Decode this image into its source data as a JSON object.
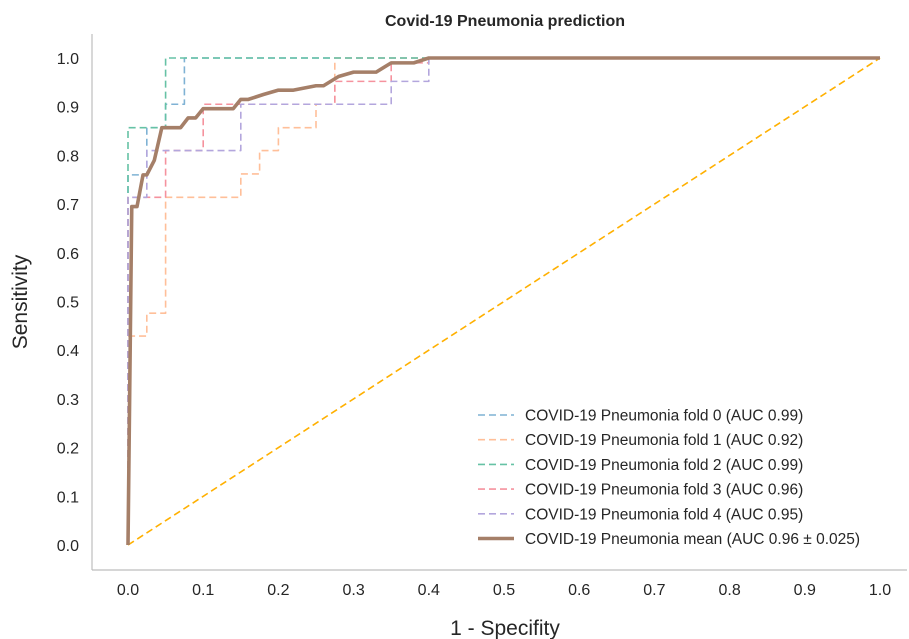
{
  "chart_data": {
    "type": "line",
    "title": "Covid-19 Pneumonia prediction",
    "xlabel": "1 - Specifity",
    "ylabel": "Sensitivity",
    "xlim": [
      0.0,
      1.0
    ],
    "ylim": [
      0.0,
      1.0
    ],
    "xticks": [
      "0.0",
      "0.1",
      "0.2",
      "0.3",
      "0.4",
      "0.5",
      "0.6",
      "0.7",
      "0.8",
      "0.9",
      "1.0"
    ],
    "yticks": [
      "0.0",
      "0.1",
      "0.2",
      "0.3",
      "0.4",
      "0.5",
      "0.6",
      "0.7",
      "0.8",
      "0.9",
      "1.0"
    ],
    "grid": false,
    "legend_position": "bottom-right",
    "series": [
      {
        "name": "COVID-19 Pneumonia fold 0 (AUC 0.99)",
        "color": "#7fb2d4",
        "style": "dashed",
        "x": [
          0.0,
          0.0,
          0.0,
          0.025,
          0.025,
          0.05,
          0.05,
          0.075,
          0.075,
          1.0
        ],
        "y": [
          0.0,
          0.76,
          0.76,
          0.76,
          0.857,
          0.857,
          0.905,
          0.905,
          1.0,
          1.0
        ]
      },
      {
        "name": "COVID-19 Pneumonia fold 1 (AUC 0.92)",
        "color": "#ffbf99",
        "style": "dashed",
        "x": [
          0.0,
          0.0,
          0.025,
          0.025,
          0.05,
          0.05,
          0.15,
          0.15,
          0.175,
          0.175,
          0.2,
          0.2,
          0.25,
          0.25,
          0.275,
          0.275,
          1.0
        ],
        "y": [
          0.0,
          0.429,
          0.429,
          0.476,
          0.476,
          0.714,
          0.714,
          0.762,
          0.762,
          0.81,
          0.81,
          0.857,
          0.857,
          0.905,
          0.905,
          1.0,
          1.0
        ]
      },
      {
        "name": "COVID-19 Pneumonia fold 2 (AUC 0.99)",
        "color": "#66c2a5",
        "style": "dashed",
        "x": [
          0.0,
          0.0,
          0.05,
          0.05,
          1.0
        ],
        "y": [
          0.0,
          0.857,
          0.857,
          1.0,
          1.0
        ]
      },
      {
        "name": "COVID-19 Pneumonia fold 3 (AUC 0.96)",
        "color": "#f5929e",
        "style": "dashed",
        "x": [
          0.0,
          0.0,
          0.05,
          0.05,
          0.1,
          0.1,
          0.275,
          0.275,
          0.35,
          0.35,
          0.4,
          0.4,
          1.0
        ],
        "y": [
          0.0,
          0.714,
          0.714,
          0.81,
          0.81,
          0.905,
          0.905,
          0.952,
          0.952,
          0.99,
          0.99,
          1.0,
          1.0
        ]
      },
      {
        "name": "COVID-19 Pneumonia fold 4 (AUC 0.95)",
        "color": "#b3a6dd",
        "style": "dashed",
        "x": [
          0.0,
          0.0,
          0.025,
          0.025,
          0.15,
          0.15,
          0.35,
          0.35,
          0.4,
          0.4,
          1.0
        ],
        "y": [
          0.0,
          0.714,
          0.714,
          0.81,
          0.81,
          0.905,
          0.905,
          0.952,
          0.952,
          1.0,
          1.0
        ]
      },
      {
        "name": "COVID-19 Pneumonia mean (AUC 0.96 ± 0.025)",
        "color": "#a57f68",
        "style": "solid",
        "x": [
          0.0,
          0.005,
          0.012,
          0.02,
          0.025,
          0.035,
          0.045,
          0.05,
          0.06,
          0.07,
          0.08,
          0.09,
          0.1,
          0.11,
          0.12,
          0.14,
          0.15,
          0.16,
          0.18,
          0.2,
          0.22,
          0.25,
          0.26,
          0.28,
          0.3,
          0.33,
          0.35,
          0.38,
          0.4,
          0.45,
          0.5,
          0.6,
          0.7,
          0.8,
          0.9,
          1.0
        ],
        "y": [
          0.0,
          0.695,
          0.695,
          0.76,
          0.76,
          0.79,
          0.857,
          0.857,
          0.857,
          0.857,
          0.877,
          0.877,
          0.896,
          0.896,
          0.896,
          0.896,
          0.915,
          0.915,
          0.925,
          0.934,
          0.934,
          0.943,
          0.943,
          0.962,
          0.971,
          0.971,
          0.99,
          0.99,
          1.0,
          1.0,
          1.0,
          1.0,
          1.0,
          1.0,
          1.0,
          1.0
        ]
      },
      {
        "name": "",
        "color": "#ffb000",
        "style": "dashed",
        "x": [
          0.0,
          1.0
        ],
        "y": [
          0.0,
          1.0
        ]
      }
    ]
  }
}
